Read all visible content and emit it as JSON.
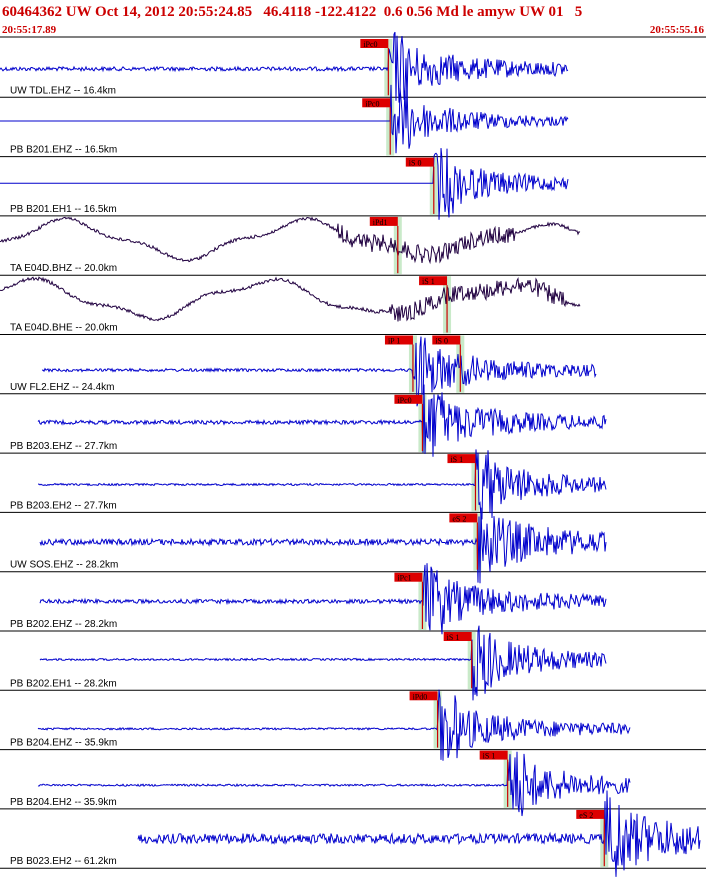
{
  "header": {
    "event_line": "60464362 UW Oct 14, 2012 20:55:24.85   46.4118 -122.4122  0.6 0.56 Md le amyw UW 01   5",
    "start_time": "20:55:17.89",
    "end_time": "20:55:55.16"
  },
  "colors": {
    "trace_short_period": "#0000cc",
    "trace_broadband": "#200040",
    "pick": "#cc0000",
    "pick_label_bg": "#dd0000",
    "window_shade": "#bfe6bf"
  },
  "chart_data": {
    "type": "seismogram",
    "time_range": [
      "20:55:17.89",
      "20:55:55.16"
    ],
    "traces": [
      {
        "label": "UW TDL.EHZ -- 16.4km",
        "picks": [
          {
            "label": "iPc0",
            "t": 20.5
          }
        ]
      },
      {
        "label": "PB B201.EHZ -- 16.5km",
        "picks": [
          {
            "label": "iPc0",
            "t": 20.6
          }
        ]
      },
      {
        "label": "PB B201.EH1 -- 16.5km",
        "picks": [
          {
            "label": "iS 0",
            "t": 22.9
          }
        ]
      },
      {
        "label": "TA E04D.BHZ -- 20.0km",
        "picks": [
          {
            "label": "iPd1",
            "t": 21.0
          }
        ]
      },
      {
        "label": "TA E04D.BHE -- 20.0km",
        "picks": [
          {
            "label": "iS 1",
            "t": 23.6
          }
        ]
      },
      {
        "label": "UW FL2.EHZ -- 24.4km",
        "picks": [
          {
            "label": "iP 1",
            "t": 21.8
          },
          {
            "label": "iS 0",
            "t": 24.3
          }
        ]
      },
      {
        "label": "PB B203.EHZ -- 27.7km",
        "picks": [
          {
            "label": "iPc0",
            "t": 22.3
          }
        ]
      },
      {
        "label": "PB B203.EH2 -- 27.7km",
        "picks": [
          {
            "label": "iS 1",
            "t": 25.1
          }
        ]
      },
      {
        "label": "UW SOS.EHZ -- 28.2km",
        "picks": [
          {
            "label": "eS 2",
            "t": 25.2
          }
        ]
      },
      {
        "label": "PB B202.EHZ -- 28.2km",
        "picks": [
          {
            "label": "iPc1",
            "t": 22.3
          }
        ]
      },
      {
        "label": "PB B202.EH1 -- 28.2km",
        "picks": [
          {
            "label": "iS 1",
            "t": 24.9
          }
        ]
      },
      {
        "label": "PB B204.EHZ -- 35.9km",
        "picks": [
          {
            "label": "iPd0",
            "t": 23.1
          }
        ]
      },
      {
        "label": "PB B204.EH2 -- 35.9km",
        "picks": [
          {
            "label": "iS 1",
            "t": 26.8
          }
        ]
      },
      {
        "label": "PB B023.EH2 -- 61.2km",
        "picks": [
          {
            "label": "eS 2",
            "t": 31.9
          }
        ]
      }
    ]
  }
}
